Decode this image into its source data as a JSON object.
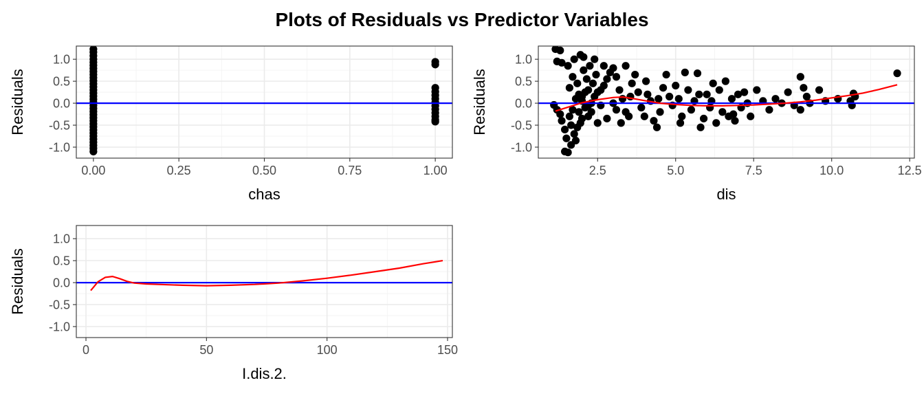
{
  "figure_title": "Plots of Residuals vs Predictor Variables",
  "colors": {
    "points": "#000000",
    "zero_line": "#0000ff",
    "smooth": "#ff0000"
  },
  "chart_data": [
    {
      "type": "scatter",
      "xlabel": "chas",
      "ylabel": "Residuals",
      "xlim": [
        -0.05,
        1.05
      ],
      "ylim": [
        -1.25,
        1.3
      ],
      "xticks": [
        0,
        0.25,
        0.5,
        0.75,
        1
      ],
      "xtick_labels": [
        "0.00",
        "0.25",
        "0.50",
        "0.75",
        "1.00"
      ],
      "yticks": [
        -1,
        -0.5,
        0,
        0.5,
        1
      ],
      "ytick_labels": [
        "-1.0",
        "-0.5",
        "0.0",
        "0.5",
        "1.0"
      ],
      "grid": true,
      "reference_line": 0,
      "points": [
        [
          0,
          1.23
        ],
        [
          0,
          1.16
        ],
        [
          0,
          1.08
        ],
        [
          0,
          1.0
        ],
        [
          0,
          0.93
        ],
        [
          0,
          0.86
        ],
        [
          0,
          0.79
        ],
        [
          0,
          0.72
        ],
        [
          0,
          0.65
        ],
        [
          0,
          0.58
        ],
        [
          0,
          0.51
        ],
        [
          0,
          0.44
        ],
        [
          0,
          0.37
        ],
        [
          0,
          0.3
        ],
        [
          0,
          0.23
        ],
        [
          0,
          0.16
        ],
        [
          0,
          0.09
        ],
        [
          0,
          0.02
        ],
        [
          0,
          -0.05
        ],
        [
          0,
          -0.12
        ],
        [
          0,
          -0.19
        ],
        [
          0,
          -0.26
        ],
        [
          0,
          -0.33
        ],
        [
          0,
          -0.4
        ],
        [
          0,
          -0.47
        ],
        [
          0,
          -0.54
        ],
        [
          0,
          -0.61
        ],
        [
          0,
          -0.68
        ],
        [
          0,
          -0.75
        ],
        [
          0,
          -0.82
        ],
        [
          0,
          -0.89
        ],
        [
          0,
          -0.96
        ],
        [
          0,
          -1.03
        ],
        [
          0,
          -1.1
        ],
        [
          1,
          0.94
        ],
        [
          1,
          0.88
        ],
        [
          1,
          0.35
        ],
        [
          1,
          0.26
        ],
        [
          1,
          0.18
        ],
        [
          1,
          0.1
        ],
        [
          1,
          0.02
        ],
        [
          1,
          -0.06
        ],
        [
          1,
          -0.14
        ],
        [
          1,
          -0.22
        ],
        [
          1,
          -0.3
        ],
        [
          1,
          -0.38
        ],
        [
          1,
          -0.42
        ]
      ]
    },
    {
      "type": "scatter",
      "xlabel": "dis",
      "ylabel": "Residuals",
      "xlim": [
        0.6,
        12.65
      ],
      "ylim": [
        -1.25,
        1.3
      ],
      "xticks": [
        2.5,
        5,
        7.5,
        10,
        12.5
      ],
      "xtick_labels": [
        "2.5",
        "5.0",
        "7.5",
        "10.0",
        "12.5"
      ],
      "yticks": [
        -1,
        -0.5,
        0,
        0.5,
        1
      ],
      "ytick_labels": [
        "-1.0",
        "-0.5",
        "0.0",
        "0.5",
        "1.0"
      ],
      "grid": true,
      "reference_line": 0,
      "points": [
        [
          1.15,
          1.23
        ],
        [
          1.3,
          1.2
        ],
        [
          1.2,
          0.95
        ],
        [
          1.35,
          0.92
        ],
        [
          1.55,
          0.85
        ],
        [
          1.75,
          1.0
        ],
        [
          1.95,
          1.1
        ],
        [
          2.05,
          1.05
        ],
        [
          2.4,
          1.0
        ],
        [
          2.25,
          0.85
        ],
        [
          2.05,
          0.75
        ],
        [
          2.45,
          0.65
        ],
        [
          1.7,
          0.6
        ],
        [
          1.85,
          0.45
        ],
        [
          1.6,
          0.35
        ],
        [
          2.2,
          0.3
        ],
        [
          1.1,
          -0.04
        ],
        [
          1.2,
          -0.15
        ],
        [
          1.3,
          -0.25
        ],
        [
          1.35,
          -0.4
        ],
        [
          1.45,
          -0.6
        ],
        [
          1.5,
          -0.8
        ],
        [
          1.45,
          -1.1
        ],
        [
          1.55,
          -1.12
        ],
        [
          1.65,
          -0.95
        ],
        [
          1.75,
          -0.7
        ],
        [
          1.85,
          -0.55
        ],
        [
          1.95,
          -0.45
        ],
        [
          1.6,
          -0.3
        ],
        [
          1.7,
          -0.15
        ],
        [
          1.8,
          0.1
        ],
        [
          1.9,
          0.2
        ],
        [
          2.0,
          0.05
        ],
        [
          2.1,
          -0.1
        ],
        [
          2.2,
          -0.3
        ],
        [
          2.3,
          -0.2
        ],
        [
          2.4,
          0.15
        ],
        [
          2.5,
          0.25
        ],
        [
          2.6,
          -0.05
        ],
        [
          2.7,
          0.4
        ],
        [
          2.8,
          0.55
        ],
        [
          2.9,
          0.7
        ],
        [
          3.0,
          0.8
        ],
        [
          3.1,
          0.6
        ],
        [
          3.2,
          0.3
        ],
        [
          3.3,
          0.1
        ],
        [
          3.4,
          -0.2
        ],
        [
          3.5,
          -0.3
        ],
        [
          3.6,
          0.45
        ],
        [
          3.7,
          0.65
        ],
        [
          3.4,
          0.85
        ],
        [
          2.7,
          0.85
        ],
        [
          3.8,
          0.25
        ],
        [
          3.9,
          -0.1
        ],
        [
          4.0,
          -0.3
        ],
        [
          4.1,
          0.2
        ],
        [
          4.2,
          0.05
        ],
        [
          4.3,
          -0.4
        ],
        [
          4.4,
          -0.55
        ],
        [
          4.5,
          -0.2
        ],
        [
          4.6,
          0.35
        ],
        [
          4.7,
          0.65
        ],
        [
          4.8,
          0.15
        ],
        [
          4.9,
          -0.05
        ],
        [
          5.0,
          0.4
        ],
        [
          5.1,
          0.1
        ],
        [
          5.2,
          -0.3
        ],
        [
          5.3,
          0.7
        ],
        [
          5.4,
          0.3
        ],
        [
          5.5,
          -0.15
        ],
        [
          5.6,
          0.05
        ],
        [
          5.7,
          0.68
        ],
        [
          5.8,
          -0.55
        ],
        [
          5.9,
          -0.35
        ],
        [
          6.0,
          0.2
        ],
        [
          6.1,
          -0.1
        ],
        [
          6.2,
          0.45
        ],
        [
          6.3,
          -0.45
        ],
        [
          6.4,
          0.3
        ],
        [
          6.5,
          -0.2
        ],
        [
          6.6,
          0.5
        ],
        [
          6.7,
          -0.3
        ],
        [
          6.8,
          0.1
        ],
        [
          6.9,
          -0.4
        ],
        [
          7.0,
          0.2
        ],
        [
          7.1,
          -0.1
        ],
        [
          7.2,
          0.25
        ],
        [
          7.4,
          -0.3
        ],
        [
          7.6,
          0.3
        ],
        [
          7.8,
          0.05
        ],
        [
          8.0,
          -0.15
        ],
        [
          8.2,
          0.1
        ],
        [
          8.4,
          0.0
        ],
        [
          8.6,
          0.25
        ],
        [
          8.8,
          -0.05
        ],
        [
          9.0,
          0.6
        ],
        [
          9.1,
          0.35
        ],
        [
          9.2,
          0.15
        ],
        [
          9.0,
          -0.15
        ],
        [
          9.3,
          0.0
        ],
        [
          9.6,
          0.3
        ],
        [
          9.8,
          0.05
        ],
        [
          10.2,
          0.1
        ],
        [
          10.6,
          0.05
        ],
        [
          10.65,
          -0.05
        ],
        [
          10.7,
          0.22
        ],
        [
          10.75,
          0.15
        ],
        [
          12.1,
          0.68
        ],
        [
          2.0,
          0.15
        ],
        [
          2.1,
          0.25
        ],
        [
          2.2,
          -0.05
        ],
        [
          2.3,
          0.0
        ],
        [
          1.9,
          -0.2
        ],
        [
          2.0,
          -0.35
        ],
        [
          2.5,
          -0.45
        ],
        [
          2.8,
          -0.35
        ],
        [
          3.0,
          0.0
        ],
        [
          3.1,
          -0.15
        ],
        [
          2.6,
          0.3
        ],
        [
          2.35,
          0.45
        ],
        [
          1.8,
          -0.85
        ],
        [
          1.65,
          -0.5
        ],
        [
          2.15,
          0.55
        ],
        [
          3.25,
          -0.45
        ],
        [
          3.55,
          0.15
        ],
        [
          4.05,
          0.5
        ],
        [
          4.45,
          0.1
        ],
        [
          5.15,
          -0.45
        ],
        [
          5.75,
          0.2
        ],
        [
          6.15,
          0.05
        ],
        [
          6.85,
          -0.25
        ],
        [
          7.3,
          0.0
        ]
      ],
      "smooth": [
        [
          1.15,
          -0.18
        ],
        [
          1.6,
          -0.08
        ],
        [
          2.0,
          0.01
        ],
        [
          2.5,
          0.08
        ],
        [
          3.0,
          0.13
        ],
        [
          3.3,
          0.14
        ],
        [
          3.6,
          0.11
        ],
        [
          4.0,
          0.06
        ],
        [
          4.5,
          0.0
        ],
        [
          5.0,
          -0.03
        ],
        [
          5.5,
          -0.05
        ],
        [
          6.0,
          -0.06
        ],
        [
          6.5,
          -0.06
        ],
        [
          7.0,
          -0.05
        ],
        [
          7.5,
          -0.04
        ],
        [
          8.0,
          -0.02
        ],
        [
          8.5,
          0.0
        ],
        [
          9.0,
          0.03
        ],
        [
          9.5,
          0.07
        ],
        [
          10.0,
          0.12
        ],
        [
          10.5,
          0.17
        ],
        [
          11.0,
          0.23
        ],
        [
          11.5,
          0.31
        ],
        [
          12.1,
          0.42
        ]
      ]
    },
    {
      "type": "line",
      "xlabel": "I.dis.2.",
      "ylabel": "Residuals",
      "xlim": [
        -4,
        152
      ],
      "ylim": [
        -1.25,
        1.3
      ],
      "xticks": [
        0,
        50,
        100,
        150
      ],
      "xtick_labels": [
        "0",
        "50",
        "100",
        "150"
      ],
      "yticks": [
        -1,
        -0.5,
        0,
        0.5,
        1
      ],
      "ytick_labels": [
        "-1.0",
        "-0.5",
        "0.0",
        "0.5",
        "1.0"
      ],
      "grid": true,
      "reference_line": 0,
      "smooth": [
        [
          2,
          -0.18
        ],
        [
          5,
          0.02
        ],
        [
          8,
          0.12
        ],
        [
          11,
          0.14
        ],
        [
          14,
          0.09
        ],
        [
          17,
          0.03
        ],
        [
          20,
          -0.01
        ],
        [
          25,
          -0.03
        ],
        [
          30,
          -0.04
        ],
        [
          40,
          -0.06
        ],
        [
          50,
          -0.07
        ],
        [
          60,
          -0.06
        ],
        [
          70,
          -0.04
        ],
        [
          80,
          -0.01
        ],
        [
          90,
          0.04
        ],
        [
          100,
          0.1
        ],
        [
          110,
          0.17
        ],
        [
          120,
          0.25
        ],
        [
          130,
          0.33
        ],
        [
          140,
          0.43
        ],
        [
          148,
          0.5
        ]
      ]
    }
  ]
}
